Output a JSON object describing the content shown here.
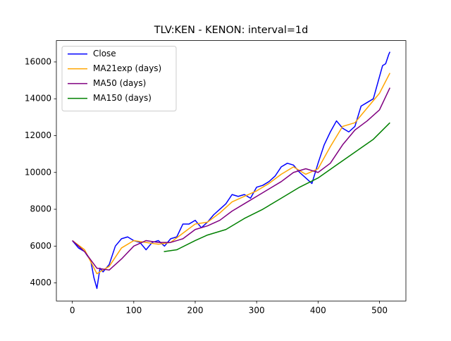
{
  "chart_data": {
    "type": "line",
    "title": "TLV:KEN - KENON: interval=1d",
    "xlim": [
      -26,
      543
    ],
    "ylim": [
      3020,
      17160
    ],
    "xticks": [
      0,
      100,
      200,
      300,
      400,
      500
    ],
    "yticks": [
      4000,
      6000,
      8000,
      10000,
      12000,
      14000,
      16000
    ],
    "legend": "upper left",
    "grid": false,
    "series": [
      {
        "name": "Close",
        "color": "#0000ff",
        "x": [
          0,
          10,
          20,
          30,
          35,
          40,
          45,
          50,
          60,
          70,
          80,
          90,
          100,
          110,
          120,
          130,
          140,
          150,
          160,
          170,
          180,
          190,
          200,
          210,
          220,
          230,
          240,
          250,
          260,
          270,
          280,
          290,
          300,
          310,
          320,
          330,
          340,
          350,
          360,
          370,
          380,
          390,
          400,
          410,
          420,
          430,
          440,
          450,
          460,
          470,
          480,
          490,
          500,
          505,
          510,
          515,
          517
        ],
        "values": [
          6300,
          5900,
          5700,
          5200,
          4300,
          3700,
          4800,
          4600,
          5000,
          6000,
          6400,
          6500,
          6300,
          6200,
          5800,
          6200,
          6300,
          6000,
          6400,
          6500,
          7200,
          7200,
          7400,
          7000,
          7300,
          7700,
          8000,
          8300,
          8800,
          8700,
          8800,
          8600,
          9200,
          9300,
          9500,
          9800,
          10300,
          10500,
          10400,
          10000,
          9700,
          9400,
          10500,
          11500,
          12200,
          12800,
          12400,
          12200,
          12500,
          13600,
          13800,
          14000,
          15200,
          15800,
          15900,
          16400,
          16550
        ]
      },
      {
        "name": "MA21exp (days)",
        "color": "#ffa500",
        "x": [
          0,
          20,
          40,
          60,
          80,
          100,
          120,
          140,
          160,
          180,
          200,
          220,
          240,
          260,
          280,
          300,
          320,
          340,
          360,
          380,
          400,
          420,
          440,
          460,
          480,
          500,
          517
        ],
        "values": [
          6300,
          5800,
          4500,
          4900,
          5900,
          6300,
          6200,
          6100,
          6200,
          6700,
          7200,
          7300,
          7800,
          8400,
          8700,
          9000,
          9400,
          9900,
          10300,
          9900,
          10200,
          11400,
          12500,
          12700,
          13500,
          14300,
          15400
        ]
      },
      {
        "name": "MA50 (days)",
        "color": "#800080",
        "x": [
          0,
          20,
          40,
          60,
          80,
          100,
          120,
          140,
          160,
          180,
          200,
          220,
          240,
          260,
          280,
          300,
          320,
          340,
          360,
          380,
          400,
          420,
          440,
          460,
          480,
          500,
          517
        ],
        "values": [
          6300,
          5700,
          4800,
          4700,
          5300,
          6000,
          6300,
          6200,
          6200,
          6400,
          6900,
          7100,
          7400,
          7900,
          8300,
          8700,
          9100,
          9500,
          10000,
          10200,
          10000,
          10500,
          11500,
          12300,
          12800,
          13400,
          14600
        ]
      },
      {
        "name": "MA150 (days)",
        "color": "#008000",
        "x": [
          149,
          170,
          200,
          220,
          250,
          280,
          310,
          340,
          370,
          400,
          430,
          460,
          490,
          517
        ],
        "values": [
          5700,
          5800,
          6300,
          6600,
          6900,
          7500,
          8000,
          8600,
          9200,
          9700,
          10400,
          11100,
          11800,
          12700
        ]
      }
    ]
  }
}
